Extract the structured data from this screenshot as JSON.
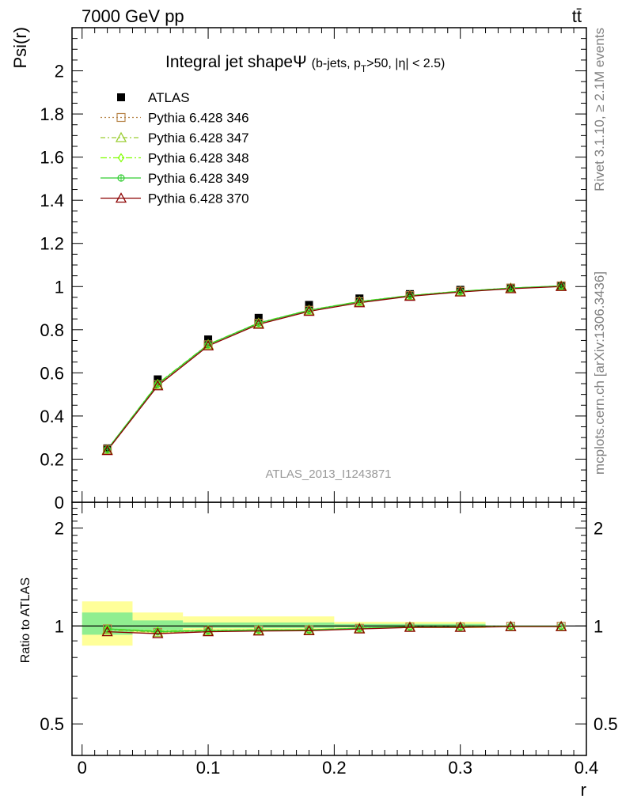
{
  "header": {
    "energy": "7000 GeV pp",
    "process": "tt̄"
  },
  "side_labels": {
    "rivet": "Rivet 3.1.10, ≥ 2.1M events",
    "mcplots": "mcplots.cern.ch [arXiv:1306.3436]"
  },
  "watermark": "ATLAS_2013_I1243871",
  "chart_data": [
    {
      "type": "line",
      "title": "Integral jet shape",
      "title_symbol": "Ψ",
      "subtitle_parts": {
        "pre": "(b-jets, p",
        "sub": "T",
        "post": ">50, |η| < 2.5)"
      },
      "ylabel": "Psi(r)",
      "xlabel": "r",
      "xlim": [
        -0.008,
        0.4
      ],
      "ylim": [
        0,
        2.2
      ],
      "yticks": [
        0,
        0.2,
        0.4,
        0.6,
        0.8,
        1,
        1.2,
        1.4,
        1.6,
        1.8,
        2
      ],
      "ytick_labels": [
        "0",
        "0.2",
        "0.4",
        "0.6",
        "0.8",
        "1",
        "1.2",
        "1.4",
        "1.6",
        "1.8",
        "2"
      ],
      "x": [
        0.02,
        0.06,
        0.1,
        0.14,
        0.18,
        0.22,
        0.26,
        0.3,
        0.34,
        0.38
      ],
      "data": {
        "name": "ATLAS",
        "marker": "square",
        "color": "#000000",
        "values": [
          0.25,
          0.57,
          0.755,
          0.855,
          0.915,
          0.945,
          0.965,
          0.985,
          0.995,
          1.005
        ]
      },
      "series": [
        {
          "name": "Pythia 6.428 346",
          "color": "#b8864b",
          "marker": "open-square",
          "dash": "2,3",
          "values": [
            0.245,
            0.545,
            0.73,
            0.83,
            0.89,
            0.93,
            0.958,
            0.978,
            0.993,
            1.003
          ]
        },
        {
          "name": "Pythia 6.428 347",
          "color": "#9acd32",
          "marker": "open-triangle",
          "dash": "6,3,2,3",
          "values": [
            0.243,
            0.545,
            0.73,
            0.83,
            0.89,
            0.93,
            0.958,
            0.978,
            0.993,
            1.003
          ]
        },
        {
          "name": "Pythia 6.428 348",
          "color": "#7fff00",
          "marker": "open-diamond",
          "dash": "8,3,2,3",
          "values": [
            0.245,
            0.55,
            0.732,
            0.832,
            0.891,
            0.931,
            0.959,
            0.979,
            0.993,
            1.003
          ]
        },
        {
          "name": "Pythia 6.428 349",
          "color": "#32cd32",
          "marker": "open-circle-cross",
          "dash": "",
          "values": [
            0.245,
            0.548,
            0.731,
            0.831,
            0.89,
            0.93,
            0.958,
            0.978,
            0.993,
            1.003
          ]
        },
        {
          "name": "Pythia 6.428 370",
          "color": "#8b0000",
          "marker": "open-triangle",
          "dash": "",
          "values": [
            0.24,
            0.54,
            0.725,
            0.825,
            0.885,
            0.925,
            0.955,
            0.975,
            0.99,
            1.0
          ]
        }
      ],
      "legend_position": "top-left"
    },
    {
      "type": "line",
      "ylabel": "Ratio to ATLAS",
      "xlabel": "r",
      "xlim": [
        -0.008,
        0.4
      ],
      "ylim": [
        0.4,
        2.4
      ],
      "log_y": true,
      "yticks": [
        0.5,
        1,
        2
      ],
      "ytick_labels": [
        "0.5",
        "1",
        "2"
      ],
      "xticks": [
        0,
        0.1,
        0.2,
        0.3,
        0.4
      ],
      "xtick_labels": [
        "0",
        "0.1",
        "0.2",
        "0.3",
        "0.4"
      ],
      "reference": 1,
      "bands": [
        {
          "name": "stat",
          "color": "#90ee90",
          "bins": [
            [
              0,
              0.04,
              0.94,
              1.1
            ],
            [
              0.04,
              0.08,
              0.97,
              1.04
            ],
            [
              0.08,
              0.2,
              0.985,
              1.025
            ],
            [
              0.2,
              0.32,
              0.99,
              1.015
            ]
          ]
        },
        {
          "name": "syst",
          "color": "#ffff99",
          "bins": [
            [
              0,
              0.04,
              0.87,
              1.19
            ],
            [
              0.04,
              0.08,
              0.95,
              1.1
            ],
            [
              0.08,
              0.2,
              0.97,
              1.07
            ],
            [
              0.2,
              0.32,
              0.985,
              1.03
            ]
          ]
        }
      ],
      "series": [
        {
          "name": "Pythia 6.428 346",
          "values": [
            0.98,
            0.956,
            0.967,
            0.971,
            0.973,
            0.984,
            0.993,
            0.993,
            0.998,
            0.998
          ]
        },
        {
          "name": "Pythia 6.428 347",
          "values": [
            0.972,
            0.956,
            0.967,
            0.971,
            0.973,
            0.984,
            0.993,
            0.993,
            0.998,
            0.998
          ]
        },
        {
          "name": "Pythia 6.428 348",
          "values": [
            0.98,
            0.965,
            0.97,
            0.973,
            0.974,
            0.985,
            0.994,
            0.994,
            0.998,
            0.998
          ]
        },
        {
          "name": "Pythia 6.428 349",
          "values": [
            0.98,
            0.961,
            0.968,
            0.972,
            0.973,
            0.984,
            0.993,
            0.993,
            0.998,
            0.998
          ]
        },
        {
          "name": "Pythia 6.428 370",
          "values": [
            0.96,
            0.947,
            0.96,
            0.965,
            0.967,
            0.979,
            0.99,
            0.99,
            0.995,
            0.995
          ]
        }
      ]
    }
  ]
}
